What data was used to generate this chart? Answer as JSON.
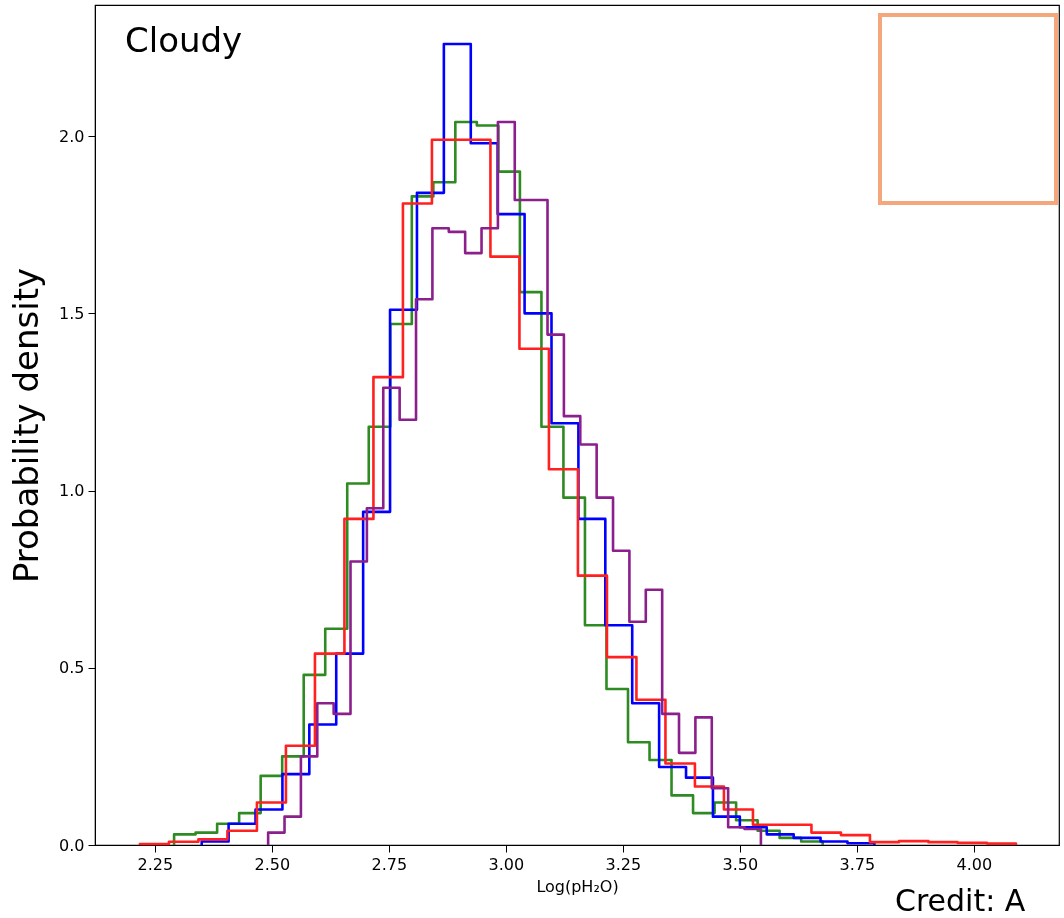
{
  "chart_data": {
    "type": "step",
    "title": "Cloudy",
    "xlabel": "Log(pH₂O)",
    "ylabel": "Probability density",
    "annotations": [
      "Credit: A"
    ],
    "xlim": [
      2.122,
      4.182
    ],
    "ylim": [
      0,
      2.37
    ],
    "xticks": [
      {
        "value": 2.25,
        "label": "2.25"
      },
      {
        "value": 2.5,
        "label": "2.50"
      },
      {
        "value": 2.75,
        "label": "2.75"
      },
      {
        "value": 3,
        "label": "3.00"
      },
      {
        "value": 3.25,
        "label": "3.25"
      },
      {
        "value": 3.5,
        "label": "3.50"
      },
      {
        "value": 3.75,
        "label": "3.75"
      },
      {
        "value": 4,
        "label": "4.00"
      }
    ],
    "yticks": [
      {
        "value": 0,
        "label": "0.0"
      },
      {
        "value": 0.5,
        "label": "0.5"
      },
      {
        "value": 1,
        "label": "1.0"
      },
      {
        "value": 1.5,
        "label": "1.5"
      },
      {
        "value": 2,
        "label": "2.0"
      }
    ],
    "grid": false,
    "series": [
      {
        "color": "#2e8b22",
        "x": [
          2.291,
          2.291,
          2.337,
          2.383,
          2.43,
          2.476,
          2.522,
          2.568,
          2.614,
          2.661,
          2.707,
          2.753,
          2.799,
          2.845,
          2.892,
          2.938,
          2.984,
          3.03,
          3.076,
          3.123,
          3.169,
          3.215,
          3.261,
          3.307,
          3.354,
          3.4,
          3.446,
          3.492,
          3.538,
          3.585,
          3.631,
          3.677
        ],
        "values": [
          0,
          0.03,
          0.035,
          0.06,
          0.09,
          0.195,
          0.25,
          0.48,
          0.61,
          1.02,
          1.18,
          1.47,
          1.83,
          1.87,
          2.04,
          2.03,
          1.9,
          1.56,
          1.18,
          0.98,
          0.62,
          0.44,
          0.29,
          0.24,
          0.14,
          0.09,
          0.12,
          0.07,
          0.04,
          0.02,
          0.01,
          0
        ]
      },
      {
        "color": "#0000ff",
        "x": [
          2.35,
          2.35,
          2.4075,
          2.465,
          2.5225,
          2.58,
          2.6375,
          2.695,
          2.7525,
          2.81,
          2.8675,
          2.925,
          2.9825,
          3.04,
          3.0975,
          3.155,
          3.2125,
          3.27,
          3.3275,
          3.385,
          3.4425,
          3.5,
          3.5575,
          3.615,
          3.6725,
          3.73,
          3.7875
        ],
        "values": [
          0,
          0.01,
          0.06,
          0.1,
          0.2,
          0.34,
          0.54,
          0.94,
          1.51,
          1.84,
          2.26,
          1.98,
          1.78,
          1.5,
          1.19,
          0.92,
          0.62,
          0.4,
          0.22,
          0.19,
          0.08,
          0.05,
          0.03,
          0.02,
          0.01,
          0.005,
          0
        ]
      },
      {
        "color": "#ff2020",
        "x": [
          2.218,
          2.218,
          2.28,
          2.343,
          2.405,
          2.468,
          2.53,
          2.592,
          2.655,
          2.717,
          2.78,
          2.842,
          2.904,
          2.967,
          3.029,
          3.092,
          3.154,
          3.216,
          3.279,
          3.341,
          3.404,
          3.466,
          3.528,
          3.591,
          3.653,
          3.716,
          3.778,
          3.84,
          3.903,
          3.965,
          4.028,
          4.09
        ],
        "values": [
          0,
          0.003,
          0.009,
          0.016,
          0.04,
          0.12,
          0.28,
          0.54,
          0.92,
          1.32,
          1.81,
          1.99,
          1.99,
          1.66,
          1.4,
          1.06,
          0.76,
          0.53,
          0.41,
          0.23,
          0.165,
          0.1,
          0.057,
          0.057,
          0.035,
          0.028,
          0.008,
          0.011,
          0.008,
          0.006,
          0.004,
          0
        ]
      },
      {
        "color": "#8b1f8b",
        "x": [
          2.492,
          2.492,
          2.527,
          2.562,
          2.597,
          2.632,
          2.668,
          2.703,
          2.738,
          2.773,
          2.808,
          2.843,
          2.878,
          2.913,
          2.948,
          2.983,
          3.019,
          3.054,
          3.089,
          3.124,
          3.159,
          3.194,
          3.229,
          3.264,
          3.299,
          3.334,
          3.37,
          3.405,
          3.44,
          3.475,
          3.51,
          3.545
        ],
        "values": [
          0,
          0.035,
          0.08,
          0.25,
          0.4,
          0.37,
          0.8,
          0.95,
          1.29,
          1.2,
          1.54,
          1.74,
          1.73,
          1.67,
          1.74,
          2.04,
          1.82,
          1.82,
          1.44,
          1.21,
          1.13,
          0.98,
          0.83,
          0.63,
          0.72,
          0.37,
          0.26,
          0.36,
          0.16,
          0.05,
          0.045,
          0
        ]
      }
    ]
  }
}
